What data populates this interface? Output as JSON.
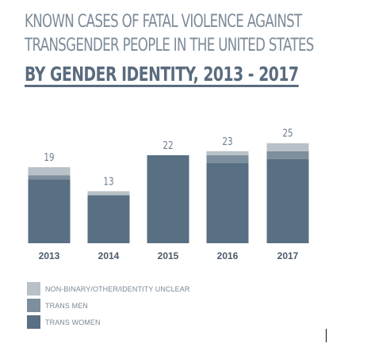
{
  "header": {
    "title_line1": "KNOWN CASES OF FATAL VIOLENCE AGAINST",
    "title_line2": "TRANSGENDER PEOPLE IN THE UNITED STATES",
    "subtitle": "BY GENDER IDENTITY, 2013 - 2017"
  },
  "chart_data": {
    "type": "bar",
    "stacked": true,
    "categories": [
      "2013",
      "2014",
      "2015",
      "2016",
      "2017"
    ],
    "series": [
      {
        "name": "TRANS WOMEN",
        "values": [
          16,
          12,
          22,
          20,
          21
        ],
        "color": "#586f84"
      },
      {
        "name": "TRANS MEN",
        "values": [
          1,
          0,
          0,
          2,
          2
        ],
        "color": "#7d8f9c"
      },
      {
        "name": "NON-BINARY/OTHER/IDENTITY UNCLEAR",
        "values": [
          2,
          1,
          0,
          1,
          2
        ],
        "color": "#b8c1c7"
      }
    ],
    "totals": [
      "19",
      "13",
      "22",
      "23",
      "25"
    ],
    "ylim": [
      0,
      25
    ],
    "grid": false,
    "legend_position": "bottom-left"
  },
  "legend": {
    "items": [
      {
        "label": "NON-BINARY/OTHER/IDENTITY UNCLEAR",
        "color": "#b8c1c7"
      },
      {
        "label": "TRANS MEN",
        "color": "#7d8f9c"
      },
      {
        "label": "TRANS WOMEN",
        "color": "#586f84"
      }
    ]
  }
}
